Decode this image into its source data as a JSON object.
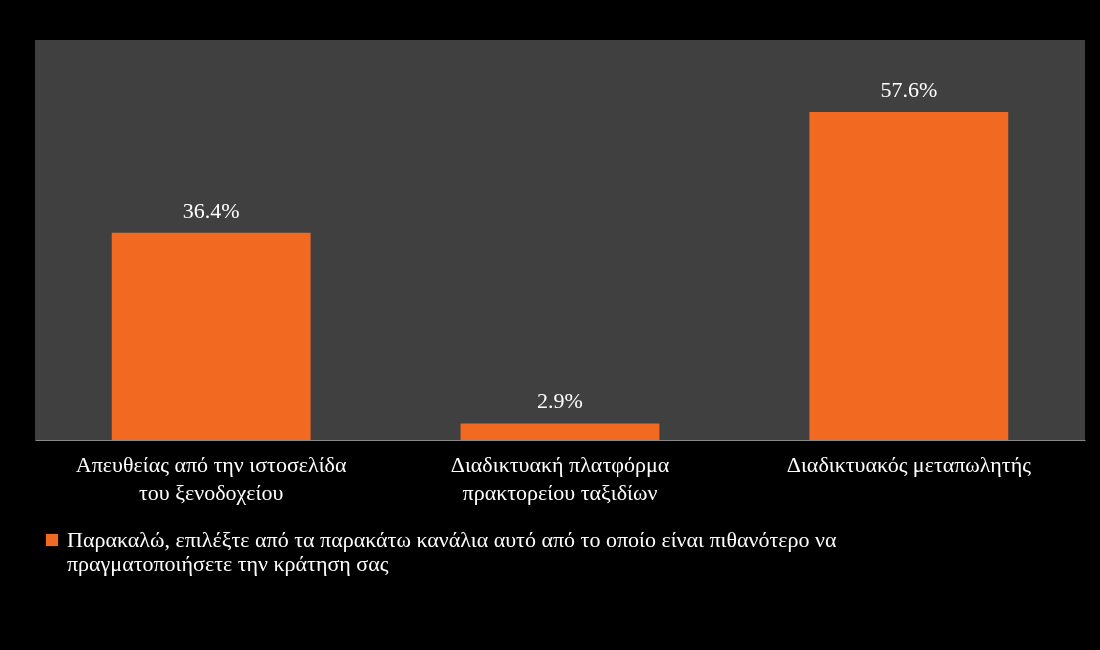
{
  "chart_data": {
    "type": "bar",
    "categories": [
      "Απευθείας από την ιστοσελίδα του ξενοδοχείου",
      "Διαδικτυακή πλατφόρμα πρακτορείου ταξιδίων",
      "Διαδικτυακός μεταπωλητής"
    ],
    "series": [
      {
        "name": "Παρακαλώ, επιλέξτε από τα παρακάτω κανάλια αυτό από το οποίο είναι πιθανότερο να πραγματοποιήσετε την κράτηση σας",
        "color": "#f26a21",
        "values": [
          36.4,
          2.9,
          57.6
        ],
        "value_labels": [
          "36.4%",
          "2.9%",
          "57.6%"
        ]
      }
    ],
    "legend": "bottom"
  }
}
